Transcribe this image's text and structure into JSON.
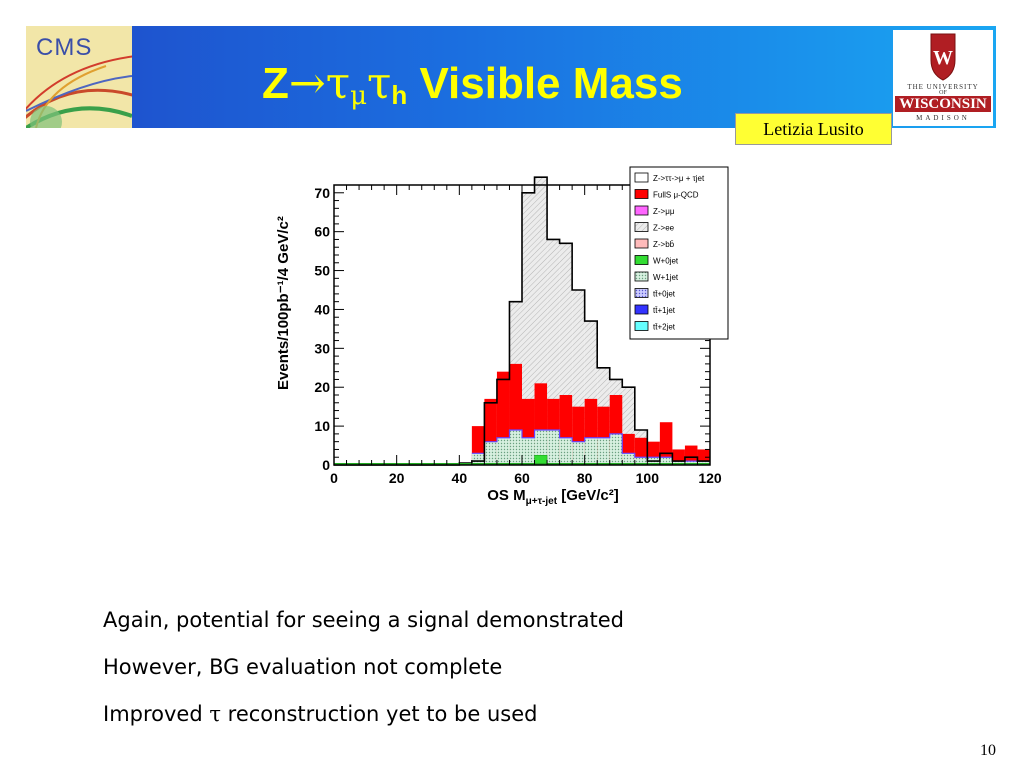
{
  "header": {
    "cms_logo_text": "CMS",
    "title_prefix": "Z",
    "title_arrow": "→",
    "title_tau": "τ",
    "title_mu": "μ",
    "title_tau2": "τ",
    "title_h": "h",
    "title_suffix": " Visible Mass",
    "uw_line1": "THE UNIVERSITY",
    "uw_line2": "OF",
    "uw_line3": "WISCONSIN",
    "uw_line4": "MADISON",
    "author": "Letizia Lusito"
  },
  "colors": {
    "header_start": "#1f4bc9",
    "header_end": "#1aa6f2",
    "title": "#ffff00",
    "author_bg": "#ffff33",
    "qcd": "#ff0000",
    "signal_fill": "#e9e9e9",
    "wjets": "#c7ebd6",
    "ztautau_line": "#000000"
  },
  "chart_data": {
    "type": "bar",
    "xlabel": "OS M",
    "xlabel_sub": "μ+τ-jet",
    "xlabel_unit": " [GeV/c²]",
    "ylabel": "Events/100pb⁻¹/4 GeV/c²",
    "xlim": [
      0,
      120
    ],
    "ylim": [
      0,
      72
    ],
    "xticks": [
      0,
      20,
      40,
      60,
      80,
      100,
      120
    ],
    "yticks": [
      0,
      10,
      20,
      30,
      40,
      50,
      60,
      70
    ],
    "bin_width": 4,
    "bin_edges_start": 0,
    "series": [
      {
        "name": "Z->ττ->μ + τjet",
        "values": [
          0,
          0,
          0,
          0,
          0,
          0,
          0,
          0,
          0,
          0,
          0.5,
          1,
          16,
          22,
          42,
          70,
          74,
          58,
          57,
          45,
          37,
          25,
          22,
          20,
          9,
          1,
          3,
          1,
          2,
          1
        ]
      },
      {
        "name": "FullS μ-QCD",
        "values": [
          0,
          0,
          0,
          0,
          0,
          0,
          0,
          0,
          0,
          0,
          0,
          10,
          17,
          24,
          26,
          17,
          21,
          17,
          18,
          15,
          17,
          15,
          18,
          8,
          7,
          6,
          11,
          4,
          5,
          4
        ]
      },
      {
        "name": "W+1jet",
        "values": [
          0,
          0,
          0,
          0,
          0,
          0,
          0,
          0,
          0,
          0,
          0,
          3,
          6,
          7,
          9,
          7,
          9,
          9,
          7,
          6,
          7,
          7,
          8,
          3,
          2,
          2,
          2,
          1,
          1,
          1
        ]
      },
      {
        "name": "Z->μμ",
        "values": []
      },
      {
        "name": "Z->ee",
        "values": []
      },
      {
        "name": "Z->bb̄",
        "values": []
      },
      {
        "name": "W+0jet",
        "values": []
      },
      {
        "name": "tt̄+0jet",
        "values": []
      },
      {
        "name": "tt̄+1jet",
        "values": []
      },
      {
        "name": "tt̄+2jet",
        "values": []
      }
    ],
    "legend_position": "top-right",
    "legend": [
      {
        "label": "Z->ττ->μ + τjet",
        "color": "#ffffff",
        "stroke": "#000000"
      },
      {
        "label": "FullS μ-QCD",
        "color": "#ff0000",
        "stroke": "#000000"
      },
      {
        "label": "Z->μμ",
        "color": "#ff66ff",
        "stroke": "#000000"
      },
      {
        "label": "Z->ee",
        "color": "#cccccc",
        "stroke": "#000000"
      },
      {
        "label": "Z->bb̄",
        "color": "#ffbbbb",
        "stroke": "#000000"
      },
      {
        "label": "W+0jet",
        "color": "#33dd33",
        "stroke": "#000000"
      },
      {
        "label": "W+1jet",
        "color": "#c7ebd6",
        "stroke": "#000000"
      },
      {
        "label": "tt̄+0jet",
        "color": "#aaaaff",
        "stroke": "#000000"
      },
      {
        "label": "tt̄+1jet",
        "color": "#3333ff",
        "stroke": "#000000"
      },
      {
        "label": "tt̄+2jet",
        "color": "#66ffff",
        "stroke": "#000000"
      }
    ]
  },
  "bullets": [
    {
      "text": "Again, potential for seeing a signal demonstrated"
    },
    {
      "text": "However, BG evaluation not complete"
    },
    {
      "pre": "Improved ",
      "greek": "τ",
      "post": " reconstruction yet to be used"
    }
  ],
  "page_number": "10"
}
